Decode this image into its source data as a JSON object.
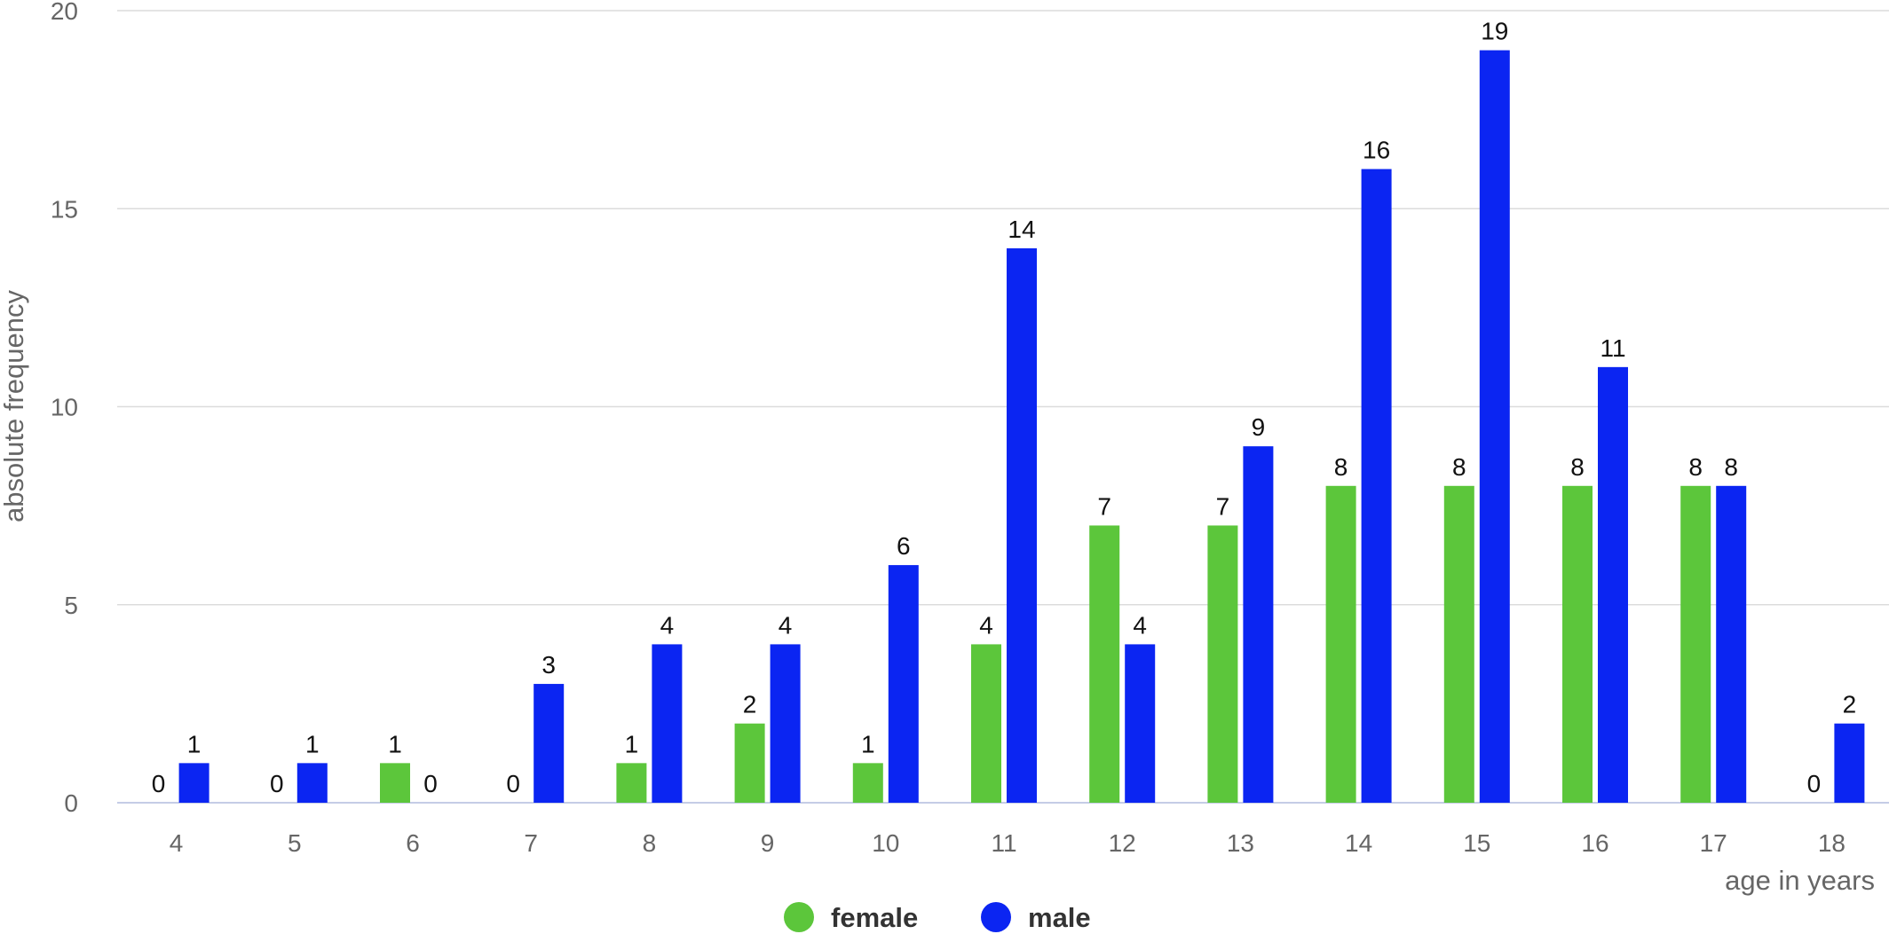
{
  "chart_data": {
    "type": "bar",
    "title": "",
    "xlabel": "age in years",
    "ylabel": "absolute frequency",
    "categories": [
      "4",
      "5",
      "6",
      "7",
      "8",
      "9",
      "10",
      "11",
      "12",
      "13",
      "14",
      "15",
      "16",
      "17",
      "18"
    ],
    "series": [
      {
        "name": "female",
        "color": "#5cc63b",
        "values": [
          0,
          0,
          1,
          0,
          1,
          2,
          1,
          4,
          7,
          7,
          8,
          8,
          8,
          8,
          0
        ]
      },
      {
        "name": "male",
        "color": "#0b25f2",
        "values": [
          1,
          1,
          0,
          3,
          4,
          4,
          6,
          14,
          4,
          9,
          16,
          19,
          11,
          8,
          2
        ]
      }
    ],
    "ylim": [
      0,
      20
    ],
    "yticks": [
      0,
      5,
      10,
      15,
      20
    ],
    "grid": true,
    "legend": "bottom-center"
  }
}
